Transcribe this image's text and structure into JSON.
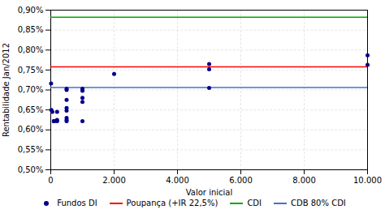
{
  "chart_data": {
    "type": "scatter",
    "xlabel": "Valor inicial",
    "ylabel": "Rentabilidade Jan/2012",
    "xlim": [
      0,
      10000
    ],
    "ylim": [
      0.005,
      0.009
    ],
    "xticks": [
      0,
      {
        "value": 2000,
        "label": "2.000"
      },
      {
        "value": 4000,
        "label": "4.000"
      },
      {
        "value": 6000,
        "label": "6.000"
      },
      {
        "value": 8000,
        "label": "8.000"
      },
      {
        "value": 10000,
        "label": "10.000"
      }
    ],
    "yticks": [
      {
        "value": 0.005,
        "label": "0,50%"
      },
      {
        "value": 0.0055,
        "label": "0,55%"
      },
      {
        "value": 0.006,
        "label": "0,60%"
      },
      {
        "value": 0.0065,
        "label": "0,65%"
      },
      {
        "value": 0.007,
        "label": "0,70%"
      },
      {
        "value": 0.0075,
        "label": "0,75%"
      },
      {
        "value": 0.008,
        "label": "0,80%"
      },
      {
        "value": 0.0085,
        "label": "0,85%"
      },
      {
        "value": 0.009,
        "label": "0,90%"
      }
    ],
    "grid": true,
    "legend": "bottom",
    "series": [
      {
        "name": "Fundos DI",
        "type": "scatter",
        "color": "#00008B",
        "x": [
          10,
          20,
          50,
          100,
          100,
          100,
          200,
          200,
          200,
          500,
          500,
          500,
          500,
          500,
          500,
          500,
          500,
          1000,
          1000,
          1000,
          1000,
          1000,
          2000,
          5000,
          5000,
          5000,
          10000,
          10000
        ],
        "values": [
          0.00716,
          0.0065,
          0.00645,
          0.00622,
          0.00622,
          0.00622,
          0.00645,
          0.00625,
          0.00622,
          0.00655,
          0.00648,
          0.0063,
          0.00625,
          0.00675,
          0.007,
          0.00703,
          0.00622,
          0.0068,
          0.00698,
          0.00703,
          0.0067,
          0.00622,
          0.0074,
          0.00752,
          0.00765,
          0.00705,
          0.00763,
          0.00787
        ]
      },
      {
        "name": "Poupança (+IR 22,5%)",
        "type": "hline",
        "color": "#FF0000",
        "values": [
          0.00758
        ]
      },
      {
        "name": "CDI",
        "type": "hline",
        "color": "#00AA00",
        "values": [
          0.00882
        ]
      },
      {
        "name": "CDB 80% CDI",
        "type": "hline",
        "color": "#4472C4",
        "values": [
          0.00706
        ]
      }
    ]
  }
}
